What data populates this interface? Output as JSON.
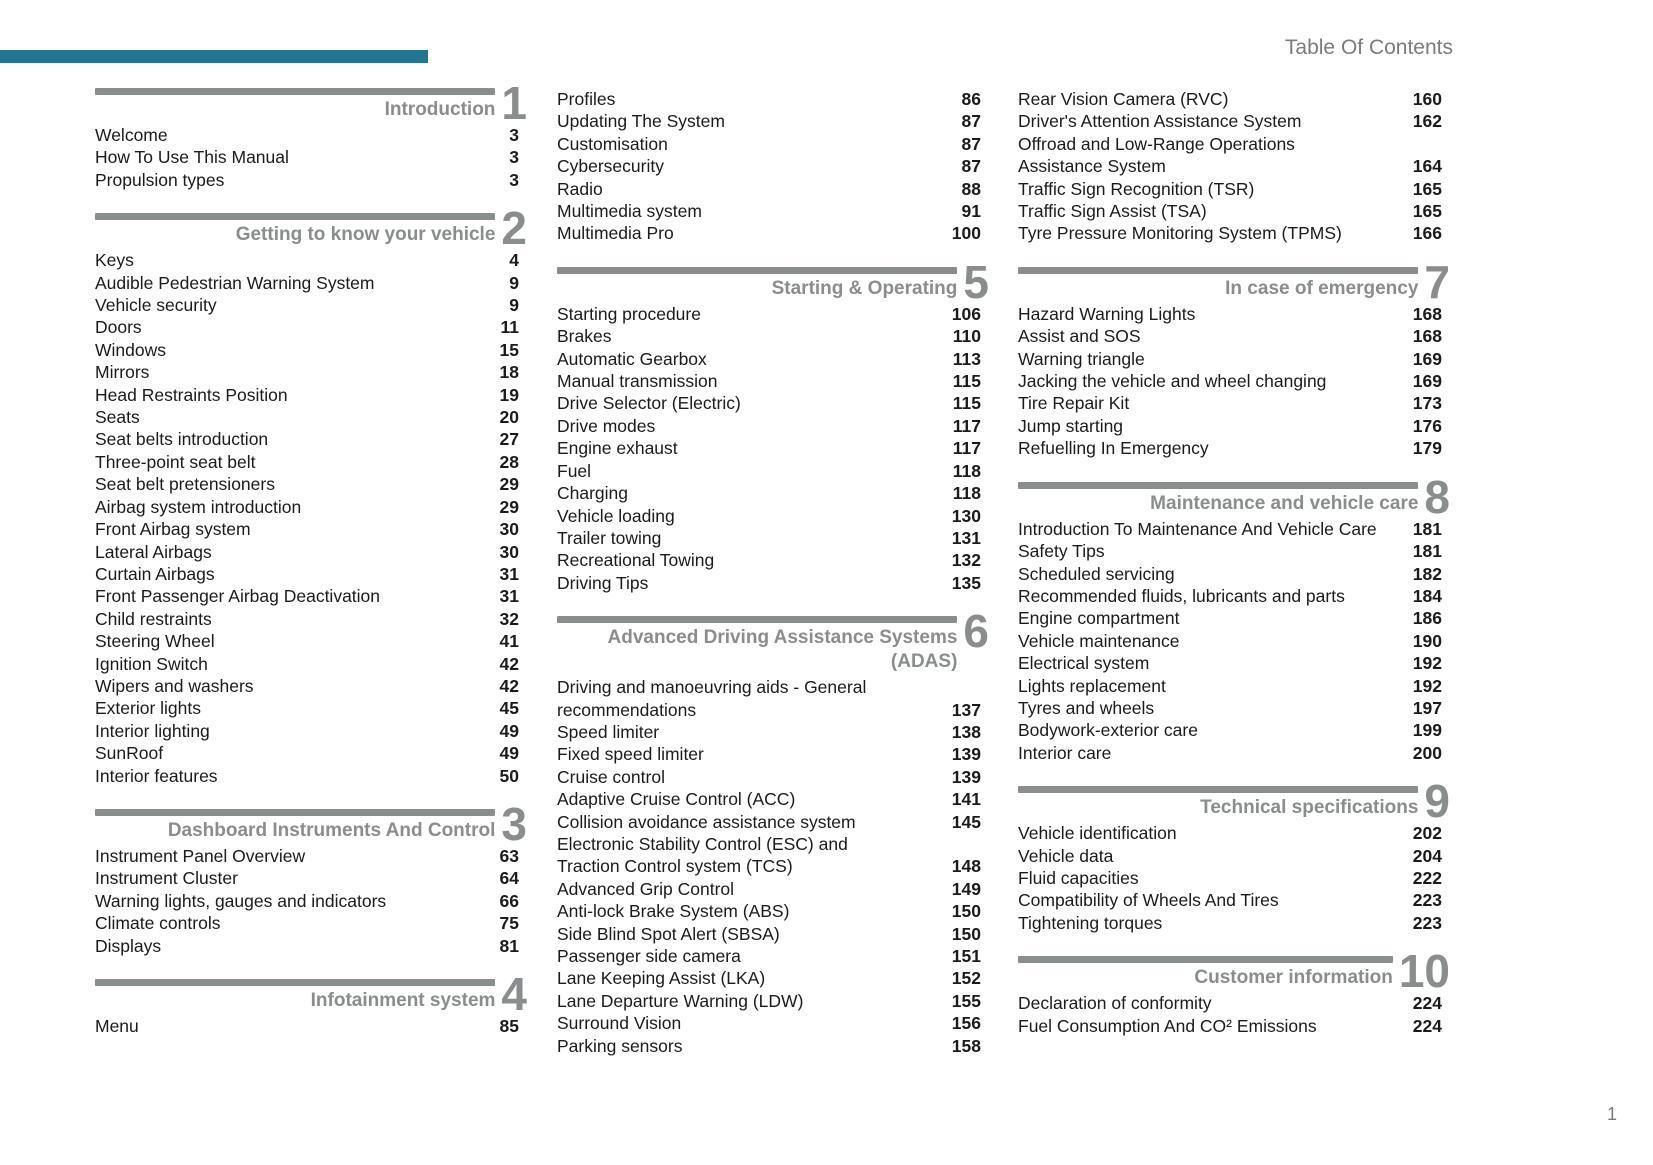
{
  "page": {
    "header_title": "Table Of Contents",
    "page_number": "1",
    "accent_color": "#227691",
    "section_gray": "#8a8d8e"
  },
  "columns": [
    {
      "blocks": [
        {
          "type": "section",
          "number": "1",
          "title": "Introduction"
        },
        {
          "type": "entries",
          "items": [
            {
              "label": "Welcome",
              "page": "3"
            },
            {
              "label": "How To Use This Manual",
              "page": "3"
            },
            {
              "label": "Propulsion types",
              "page": "3"
            }
          ]
        },
        {
          "type": "section",
          "number": "2",
          "title": "Getting to know your vehicle"
        },
        {
          "type": "entries",
          "items": [
            {
              "label": "Keys",
              "page": "4"
            },
            {
              "label": "Audible Pedestrian Warning System",
              "page": "9"
            },
            {
              "label": "Vehicle security",
              "page": "9"
            },
            {
              "label": "Doors",
              "page": "11"
            },
            {
              "label": "Windows",
              "page": "15"
            },
            {
              "label": "Mirrors",
              "page": "18"
            },
            {
              "label": "Head Restraints Position",
              "page": "19"
            },
            {
              "label": "Seats",
              "page": "20"
            },
            {
              "label": "Seat belts introduction",
              "page": "27"
            },
            {
              "label": "Three-point seat belt",
              "page": "28"
            },
            {
              "label": "Seat belt pretensioners",
              "page": "29"
            },
            {
              "label": "Airbag system introduction",
              "page": "29"
            },
            {
              "label": "Front Airbag system",
              "page": "30"
            },
            {
              "label": "Lateral Airbags",
              "page": "30"
            },
            {
              "label": "Curtain Airbags",
              "page": "31"
            },
            {
              "label": "Front Passenger Airbag Deactivation",
              "page": "31"
            },
            {
              "label": "Child restraints",
              "page": "32"
            },
            {
              "label": "Steering Wheel",
              "page": "41"
            },
            {
              "label": "Ignition Switch",
              "page": "42"
            },
            {
              "label": "Wipers and washers",
              "page": "42"
            },
            {
              "label": "Exterior lights",
              "page": "45"
            },
            {
              "label": "Interior lighting",
              "page": "49"
            },
            {
              "label": "SunRoof",
              "page": "49"
            },
            {
              "label": "Interior features",
              "page": "50"
            }
          ]
        },
        {
          "type": "section",
          "number": "3",
          "title": "Dashboard Instruments And Control"
        },
        {
          "type": "entries",
          "items": [
            {
              "label": "Instrument Panel Overview",
              "page": "63"
            },
            {
              "label": "Instrument Cluster",
              "page": "64"
            },
            {
              "label": "Warning lights, gauges and indicators",
              "page": "66"
            },
            {
              "label": "Climate controls",
              "page": "75"
            },
            {
              "label": "Displays",
              "page": "81"
            }
          ]
        },
        {
          "type": "section",
          "number": "4",
          "title": "Infotainment system"
        },
        {
          "type": "entries",
          "items": [
            {
              "label": "Menu",
              "page": "85"
            }
          ]
        }
      ]
    },
    {
      "blocks": [
        {
          "type": "entries",
          "items": [
            {
              "label": "Profiles",
              "page": "86"
            },
            {
              "label": "Updating The System",
              "page": "87"
            },
            {
              "label": "Customisation",
              "page": "87"
            },
            {
              "label": "Cybersecurity",
              "page": "87"
            },
            {
              "label": "Radio",
              "page": "88"
            },
            {
              "label": "Multimedia system",
              "page": "91"
            },
            {
              "label": "Multimedia Pro",
              "page": "100"
            }
          ]
        },
        {
          "type": "section",
          "number": "5",
          "title": "Starting & Operating"
        },
        {
          "type": "entries",
          "items": [
            {
              "label": "Starting procedure",
              "page": "106"
            },
            {
              "label": "Brakes",
              "page": "110"
            },
            {
              "label": "Automatic Gearbox",
              "page": "113"
            },
            {
              "label": "Manual transmission",
              "page": "115"
            },
            {
              "label": "Drive Selector (Electric)",
              "page": "115"
            },
            {
              "label": "Drive modes",
              "page": "117"
            },
            {
              "label": "Engine exhaust",
              "page": "117"
            },
            {
              "label": "Fuel",
              "page": "118"
            },
            {
              "label": "Charging",
              "page": "118"
            },
            {
              "label": "Vehicle loading",
              "page": "130"
            },
            {
              "label": "Trailer towing",
              "page": "131"
            },
            {
              "label": "Recreational Towing",
              "page": "132"
            },
            {
              "label": "Driving Tips",
              "page": "135"
            }
          ]
        },
        {
          "type": "section",
          "number": "6",
          "title": "Advanced Driving Assistance Systems\n(ADAS)"
        },
        {
          "type": "entries",
          "items": [
            {
              "label": "Driving and manoeuvring aids - General\nrecommendations",
              "page": "137"
            },
            {
              "label": "Speed limiter",
              "page": "138"
            },
            {
              "label": "Fixed speed limiter",
              "page": "139"
            },
            {
              "label": "Cruise control",
              "page": "139"
            },
            {
              "label": "Adaptive Cruise Control (ACC)",
              "page": "141"
            },
            {
              "label": "Collision avoidance assistance system",
              "page": "145"
            },
            {
              "label": "Electronic Stability Control (ESC) and\nTraction Control system (TCS)",
              "page": "148"
            },
            {
              "label": "Advanced Grip Control",
              "page": "149"
            },
            {
              "label": "Anti-lock Brake System (ABS)",
              "page": "150"
            },
            {
              "label": "Side Blind Spot Alert (SBSA)",
              "page": "150"
            },
            {
              "label": "Passenger side camera",
              "page": "151"
            },
            {
              "label": "Lane Keeping Assist (LKA)",
              "page": "152"
            },
            {
              "label": "Lane Departure Warning (LDW)",
              "page": "155"
            },
            {
              "label": "Surround Vision",
              "page": "156"
            },
            {
              "label": "Parking sensors",
              "page": "158"
            }
          ]
        }
      ]
    },
    {
      "blocks": [
        {
          "type": "entries",
          "items": [
            {
              "label": "Rear Vision Camera (RVC)",
              "page": "160"
            },
            {
              "label": "Driver's Attention Assistance System",
              "page": "162"
            },
            {
              "label": "Offroad and Low-Range Operations\nAssistance System",
              "page": "164"
            },
            {
              "label": "Traffic Sign Recognition (TSR)",
              "page": "165"
            },
            {
              "label": "Traffic Sign Assist (TSA)",
              "page": "165"
            },
            {
              "label": "Tyre Pressure Monitoring System (TPMS)",
              "page": "166"
            }
          ]
        },
        {
          "type": "section",
          "number": "7",
          "title": "In case of emergency"
        },
        {
          "type": "entries",
          "items": [
            {
              "label": "Hazard Warning Lights",
              "page": "168"
            },
            {
              "label": "Assist and SOS",
              "page": "168"
            },
            {
              "label": "Warning triangle",
              "page": "169"
            },
            {
              "label": "Jacking the vehicle and wheel changing",
              "page": "169"
            },
            {
              "label": "Tire Repair Kit",
              "page": "173"
            },
            {
              "label": "Jump starting",
              "page": "176"
            },
            {
              "label": "Refuelling In Emergency",
              "page": "179"
            }
          ]
        },
        {
          "type": "section",
          "number": "8",
          "title": "Maintenance and vehicle care"
        },
        {
          "type": "entries",
          "items": [
            {
              "label": "Introduction To Maintenance And Vehicle Care",
              "page": "181"
            },
            {
              "label": "Safety Tips",
              "page": "181"
            },
            {
              "label": "Scheduled servicing",
              "page": "182"
            },
            {
              "label": "Recommended fluids, lubricants and parts",
              "page": "184"
            },
            {
              "label": "Engine compartment",
              "page": "186"
            },
            {
              "label": "Vehicle maintenance",
              "page": "190"
            },
            {
              "label": "Electrical system",
              "page": "192"
            },
            {
              "label": "Lights replacement",
              "page": "192"
            },
            {
              "label": "Tyres and wheels",
              "page": "197"
            },
            {
              "label": "Bodywork-exterior care",
              "page": "199"
            },
            {
              "label": "Interior care",
              "page": "200"
            }
          ]
        },
        {
          "type": "section",
          "number": "9",
          "title": "Technical specifications"
        },
        {
          "type": "entries",
          "items": [
            {
              "label": "Vehicle identification",
              "page": "202"
            },
            {
              "label": "Vehicle data",
              "page": "204"
            },
            {
              "label": "Fluid capacities",
              "page": "222"
            },
            {
              "label": "Compatibility of Wheels And Tires",
              "page": "223"
            },
            {
              "label": "Tightening torques",
              "page": "223"
            }
          ]
        },
        {
          "type": "section",
          "number": "10",
          "title": "Customer information"
        },
        {
          "type": "entries",
          "items": [
            {
              "label": "Declaration of conformity",
              "page": "224"
            },
            {
              "label": "Fuel Consumption And CO² Emissions",
              "page": "224"
            }
          ]
        }
      ]
    }
  ]
}
